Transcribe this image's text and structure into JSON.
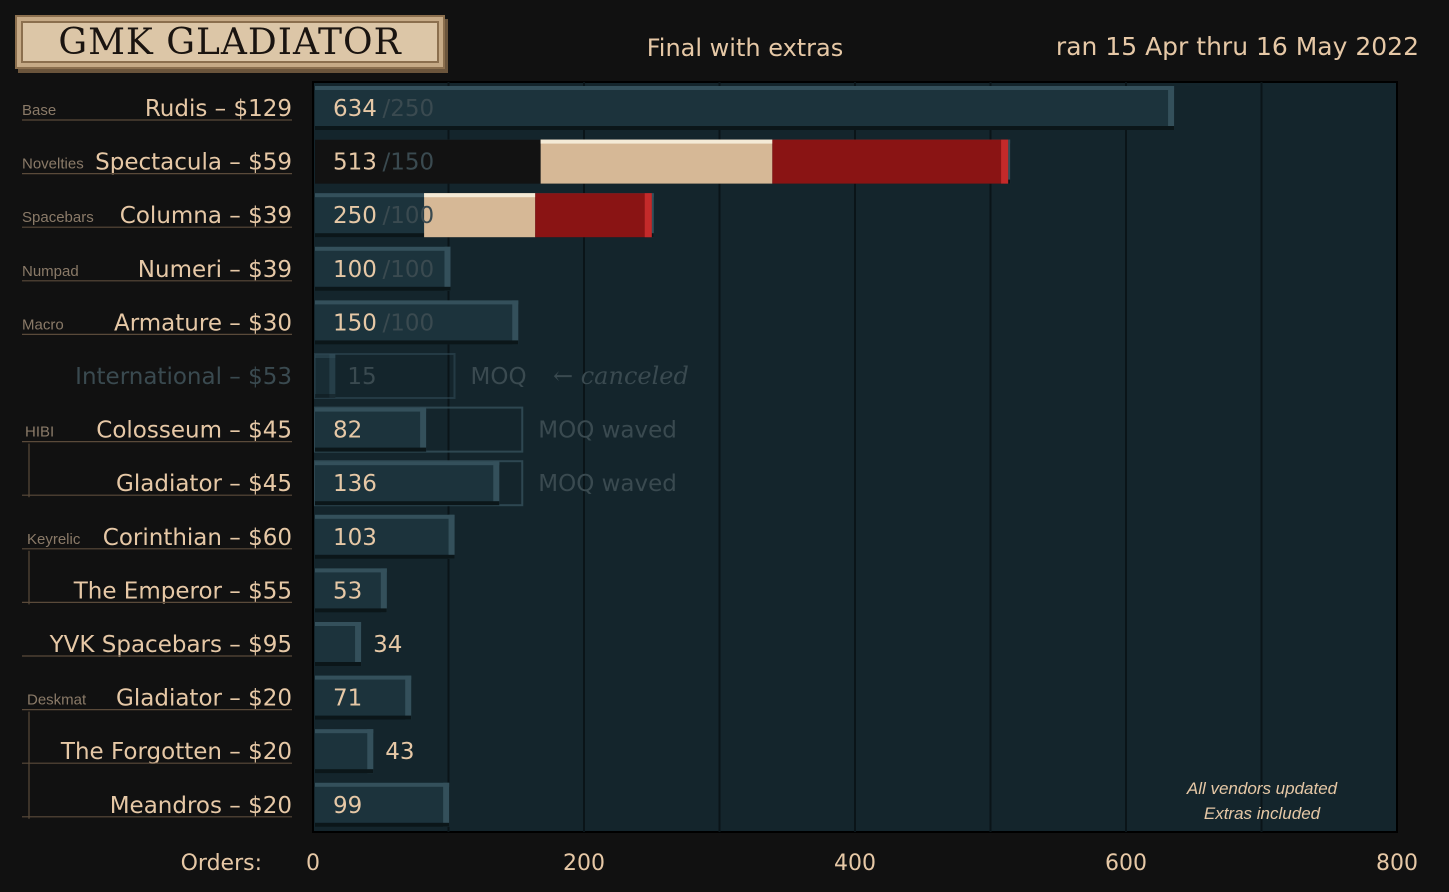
{
  "header": {
    "title": "GMK GLADIATOR",
    "subtitle": "Final with extras",
    "date_range": "ran 15 Apr thru 16 May 2022"
  },
  "colors": {
    "background": "#111111",
    "plot_bg": "#14252c",
    "bar": "#1c333c",
    "bar_edge": "#34505b",
    "beige": "#d6b896",
    "red": "#8a1414",
    "red_edge": "#c42a2a",
    "text": "#e6c8a6",
    "muted": "#3a4a50",
    "grid": "#0a1418"
  },
  "chart_data": {
    "type": "bar",
    "orientation": "horizontal",
    "xlabel": "Orders:",
    "xlim": [
      0,
      800
    ],
    "xticks": [
      "0",
      "200",
      "400",
      "600",
      "800"
    ],
    "annotation": [
      "All vendors updated",
      "Extras included"
    ],
    "categories": [
      "Rudis – $129",
      "Spectacula – $59",
      "Columna – $39",
      "Numeri – $39",
      "Armature – $30",
      "International – $53",
      "Colosseum – $45",
      "Gladiator – $45",
      "Corinthian – $60",
      "The Emperor – $55",
      "YVK Spacebars – $95",
      "Gladiator – $20",
      "The Forgotten – $20",
      "Meandros – $20"
    ],
    "groups": [
      {
        "label": "Base",
        "rows": [
          0
        ]
      },
      {
        "label": "Novelties",
        "rows": [
          1
        ]
      },
      {
        "label": "Spacebars",
        "rows": [
          2
        ]
      },
      {
        "label": "Numpad",
        "rows": [
          3
        ]
      },
      {
        "label": "Macro",
        "rows": [
          4
        ]
      },
      {
        "label": "HIBI",
        "rows": [
          6,
          7
        ]
      },
      {
        "label": "Keyrelic",
        "rows": [
          8,
          9
        ]
      },
      {
        "label": "Deskmat",
        "rows": [
          11,
          12,
          13
        ]
      }
    ],
    "values": [
      634,
      513,
      250,
      100,
      150,
      15,
      82,
      136,
      103,
      53,
      34,
      71,
      43,
      99
    ],
    "value_labels": [
      "634",
      "513",
      "250",
      "100",
      "150",
      "15",
      "82",
      "136",
      "103",
      "53",
      "34",
      "71",
      "43",
      "99"
    ],
    "moq_labels": [
      "/250",
      "/150",
      "/100",
      "/100",
      "/100",
      "MOQ",
      "MOQ waved",
      "MOQ waved",
      "",
      "",
      "",
      "",
      "",
      ""
    ],
    "moq": [
      250,
      150,
      100,
      100,
      100,
      100,
      150,
      150,
      null,
      null,
      null,
      null,
      null,
      null
    ],
    "extras_beige": [
      0,
      [
        168,
        339
      ],
      [
        82,
        164
      ],
      0,
      0,
      0,
      0,
      0,
      0,
      0,
      0,
      0,
      0,
      0
    ],
    "extras_red": [
      0,
      [
        339,
        513
      ],
      [
        164,
        250
      ],
      0,
      0,
      0,
      0,
      0,
      0,
      0,
      0,
      0,
      0,
      0
    ],
    "canceled": [
      false,
      false,
      false,
      false,
      false,
      true,
      false,
      false,
      false,
      false,
      false,
      false,
      false,
      false
    ],
    "canceled_note": "← canceled"
  }
}
